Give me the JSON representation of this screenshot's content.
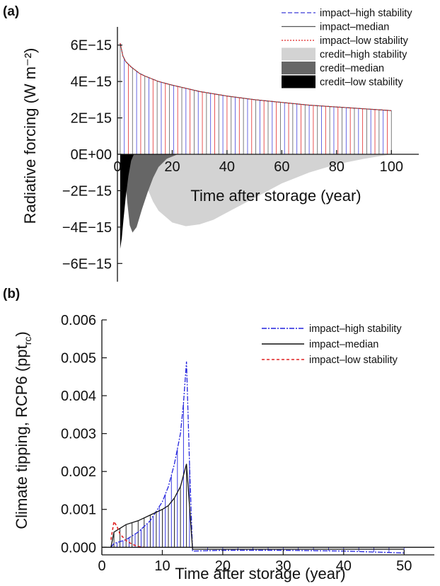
{
  "charts": [
    {
      "panel_label": "(a)",
      "chart_data": {
        "type": "area",
        "xlabel": "Time after storage (year)",
        "ylabel": "Radiative forcing (W m⁻²)",
        "xlim": [
          0,
          110
        ],
        "ylim": [
          -7e-15,
          7e-15
        ],
        "x_ticks": [
          0,
          20,
          40,
          60,
          80,
          100
        ],
        "x_tick_labels": [
          "0",
          "20",
          "40",
          "60",
          "80",
          "100"
        ],
        "y_ticks": [
          6e-15,
          4e-15,
          2e-15,
          0,
          -2e-15,
          -4e-15,
          -6e-15
        ],
        "y_tick_labels": [
          "6E−15",
          "4E−15",
          "2E−15",
          "0E+00",
          "−2E−15",
          "−4E−15",
          "−6E−15"
        ],
        "grid": false,
        "legend_position": "top-right",
        "series": [
          {
            "name": "impact–high stability",
            "kind": "line",
            "color": "#3a3ad8",
            "dash": "6,3",
            "x": [
              1,
              2,
              3,
              5,
              8,
              10,
              15,
              20,
              30,
              40,
              50,
              60,
              70,
              80,
              90,
              100
            ],
            "y": [
              6.1e-15,
              5.4e-15,
              5.1e-15,
              4.8e-15,
              4.45e-15,
              4.3e-15,
              4e-15,
              3.8e-15,
              3.45e-15,
              3.2e-15,
              3e-15,
              2.85e-15,
              2.7e-15,
              2.6e-15,
              2.5e-15,
              2.4e-15
            ]
          },
          {
            "name": "impact–median",
            "kind": "line",
            "color": "#555555",
            "dash": "",
            "x": [
              1,
              2,
              3,
              5,
              8,
              10,
              15,
              20,
              30,
              40,
              50,
              60,
              70,
              80,
              90,
              100
            ],
            "y": [
              6.1e-15,
              5.4e-15,
              5.1e-15,
              4.8e-15,
              4.45e-15,
              4.3e-15,
              4e-15,
              3.8e-15,
              3.45e-15,
              3.2e-15,
              3e-15,
              2.85e-15,
              2.7e-15,
              2.6e-15,
              2.5e-15,
              2.4e-15
            ]
          },
          {
            "name": "impact–low stability",
            "kind": "line",
            "color": "#e02020",
            "dash": "2,2",
            "x": [
              1,
              2,
              3,
              5,
              8,
              10,
              15,
              20,
              30,
              40,
              50,
              60,
              70,
              80,
              90,
              100
            ],
            "y": [
              6.1e-15,
              5.4e-15,
              5.1e-15,
              4.8e-15,
              4.45e-15,
              4.3e-15,
              4e-15,
              3.8e-15,
              3.45e-15,
              3.2e-15,
              3e-15,
              2.85e-15,
              2.7e-15,
              2.6e-15,
              2.5e-15,
              2.4e-15
            ]
          },
          {
            "name": "credit–high stability",
            "kind": "fill",
            "color": "#d3d3d3",
            "x": [
              7,
              9,
              11,
              13,
              15,
              20,
              25,
              30,
              35,
              40,
              50,
              60,
              70,
              80,
              90,
              100
            ],
            "y": [
              0,
              -1.1e-15,
              -1.9e-15,
              -2.6e-15,
              -3.1e-15,
              -3.75e-15,
              -3.95e-15,
              -3.85e-15,
              -3.6e-15,
              -3.2e-15,
              -2.4e-15,
              -1.6e-15,
              -1e-15,
              -5.5e-16,
              -2.5e-16,
              0
            ]
          },
          {
            "name": "credit–median",
            "kind": "fill",
            "color": "#666666",
            "x": [
              2.5,
              3.5,
              4.5,
              5.5,
              7,
              9,
              11,
              13,
              15,
              18,
              22
            ],
            "y": [
              0,
              -2.5e-15,
              -3.9e-15,
              -4.3e-15,
              -4e-15,
              -3e-15,
              -2.1e-15,
              -1.3e-15,
              -7e-16,
              -2.5e-16,
              0
            ]
          },
          {
            "name": "credit–low stability",
            "kind": "fill",
            "color": "#000000",
            "x": [
              1,
              1.6,
              2.2,
              3,
              4,
              5,
              6
            ],
            "y": [
              -5.2e-15,
              -4.6e-15,
              -3.6e-15,
              -2.4e-15,
              -1.2e-15,
              -3.5e-16,
              0
            ]
          }
        ]
      }
    },
    {
      "panel_label": "(b)",
      "chart_data": {
        "type": "line",
        "xlabel": "Time after storage (year)",
        "ylabel": "Climate tipping, RCP6 (ppt",
        "ylabel_subscript": "rc",
        "ylabel_suffix": ")",
        "xlim": [
          0,
          55
        ],
        "ylim": [
          -0.0002,
          0.006
        ],
        "x_ticks": [
          0,
          10,
          20,
          30,
          40,
          50
        ],
        "x_tick_labels": [
          "0",
          "10",
          "20",
          "30",
          "40",
          "50"
        ],
        "y_ticks": [
          0,
          0.001,
          0.002,
          0.003,
          0.004,
          0.005,
          0.006
        ],
        "y_tick_labels": [
          "0.000",
          "0.001",
          "0.002",
          "0.003",
          "0.004",
          "0.005",
          "0.006"
        ],
        "grid": false,
        "legend_position": "top-right",
        "series": [
          {
            "name": "impact–high stability",
            "color": "#2222dd",
            "dash": "7,2,2,2",
            "x": [
              1.5,
              2,
              4,
              6,
              8,
              10,
              11,
              12,
              13,
              13.5,
              14,
              14.5,
              15,
              20,
              30,
              40,
              50
            ],
            "y": [
              0,
              0.0001,
              0.0002,
              0.0004,
              0.0007,
              0.0012,
              0.0016,
              0.0022,
              0.003,
              0.0038,
              0.0049,
              0.0022,
              -0.0001,
              -8e-05,
              -8e-05,
              -0.0001,
              -0.00015
            ]
          },
          {
            "name": "impact–median",
            "color": "#111111",
            "dash": "",
            "x": [
              1.5,
              2,
              3,
              4,
              6,
              8,
              10,
              11,
              12,
              13,
              13.5,
              14,
              14.5,
              15,
              20,
              30,
              40,
              50
            ],
            "y": [
              0,
              0.0004,
              0.0005,
              0.0006,
              0.0007,
              0.00085,
              0.001,
              0.0011,
              0.0013,
              0.0016,
              0.0019,
              0.0022,
              0.0011,
              -5e-05,
              -5e-05,
              -5e-05,
              -5e-05,
              -5e-05
            ]
          },
          {
            "name": "impact–low stability",
            "color": "#e02020",
            "dash": "4,3",
            "x": [
              1.5,
              2,
              2.5,
              3,
              4,
              5,
              6,
              7
            ],
            "y": [
              0.0002,
              0.00068,
              0.00055,
              0.00035,
              0.00018,
              8e-05,
              2e-05,
              0
            ]
          }
        ]
      }
    }
  ]
}
